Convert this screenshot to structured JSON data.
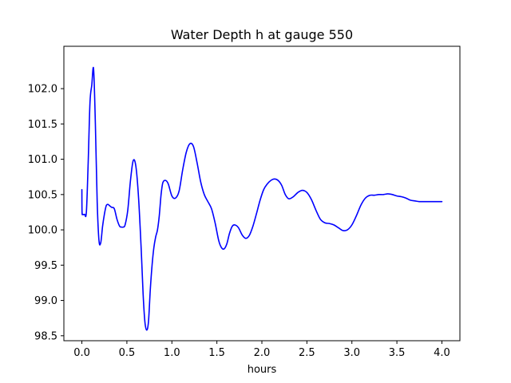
{
  "chart_data": {
    "type": "line",
    "title": "Water Depth h at gauge 550",
    "xlabel": "hours",
    "ylabel": "",
    "xlim": [
      -0.2,
      4.2
    ],
    "ylim": [
      98.43,
      102.6
    ],
    "x_ticks": [
      0.0,
      0.5,
      1.0,
      1.5,
      2.0,
      2.5,
      3.0,
      3.5,
      4.0
    ],
    "x_tick_labels": [
      "0.0",
      "0.5",
      "1.0",
      "1.5",
      "2.0",
      "2.5",
      "3.0",
      "3.5",
      "4.0"
    ],
    "y_ticks": [
      98.5,
      99.0,
      99.5,
      100.0,
      100.5,
      101.0,
      101.5,
      102.0
    ],
    "y_tick_labels": [
      "98.5",
      "99.0",
      "99.5",
      "100.0",
      "100.5",
      "101.0",
      "101.5",
      "102.0"
    ],
    "grid": false,
    "series": [
      {
        "color": "#0000ff",
        "x": [
          0.0,
          0.002,
          0.01,
          0.03,
          0.05,
          0.07,
          0.09,
          0.11,
          0.13,
          0.15,
          0.17,
          0.19,
          0.21,
          0.23,
          0.25,
          0.27,
          0.29,
          0.31,
          0.33,
          0.36,
          0.39,
          0.42,
          0.44,
          0.46,
          0.48,
          0.51,
          0.54,
          0.57,
          0.6,
          0.63,
          0.66,
          0.68,
          0.7,
          0.72,
          0.74,
          0.76,
          0.78,
          0.8,
          0.82,
          0.84,
          0.86,
          0.88,
          0.9,
          0.93,
          0.96,
          1.0,
          1.04,
          1.08,
          1.12,
          1.16,
          1.2,
          1.24,
          1.28,
          1.32,
          1.36,
          1.4,
          1.44,
          1.48,
          1.52,
          1.55,
          1.58,
          1.61,
          1.64,
          1.67,
          1.7,
          1.74,
          1.78,
          1.82,
          1.86,
          1.9,
          1.94,
          1.98,
          2.02,
          2.06,
          2.1,
          2.14,
          2.18,
          2.22,
          2.26,
          2.3,
          2.35,
          2.4,
          2.45,
          2.5,
          2.55,
          2.6,
          2.65,
          2.7,
          2.75,
          2.8,
          2.85,
          2.9,
          2.95,
          3.0,
          3.05,
          3.1,
          3.15,
          3.2,
          3.25,
          3.3,
          3.35,
          3.4,
          3.45,
          3.5,
          3.55,
          3.6,
          3.65,
          3.7,
          3.75,
          3.8,
          3.85,
          3.9,
          3.95,
          4.0
        ],
        "y": [
          100.57,
          100.25,
          100.22,
          100.22,
          100.25,
          100.95,
          101.8,
          102.05,
          102.28,
          101.5,
          100.4,
          99.85,
          99.82,
          100.05,
          100.22,
          100.34,
          100.36,
          100.34,
          100.32,
          100.3,
          100.15,
          100.05,
          100.04,
          100.04,
          100.07,
          100.28,
          100.7,
          100.98,
          100.9,
          100.45,
          99.7,
          99.1,
          98.7,
          98.58,
          98.7,
          99.15,
          99.5,
          99.75,
          99.9,
          100.0,
          100.2,
          100.5,
          100.67,
          100.7,
          100.65,
          100.48,
          100.45,
          100.55,
          100.85,
          101.1,
          101.22,
          101.18,
          100.95,
          100.68,
          100.5,
          100.4,
          100.3,
          100.1,
          99.85,
          99.75,
          99.73,
          99.8,
          99.95,
          100.05,
          100.07,
          100.03,
          99.93,
          99.88,
          99.92,
          100.05,
          100.23,
          100.42,
          100.57,
          100.65,
          100.7,
          100.72,
          100.7,
          100.63,
          100.5,
          100.44,
          100.47,
          100.53,
          100.56,
          100.53,
          100.43,
          100.28,
          100.15,
          100.1,
          100.09,
          100.07,
          100.03,
          99.99,
          100.0,
          100.07,
          100.2,
          100.35,
          100.45,
          100.49,
          100.49,
          100.5,
          100.5,
          100.51,
          100.5,
          100.48,
          100.47,
          100.45,
          100.42,
          100.41,
          100.4,
          100.4,
          100.4,
          100.4,
          100.4,
          100.4
        ]
      }
    ]
  }
}
